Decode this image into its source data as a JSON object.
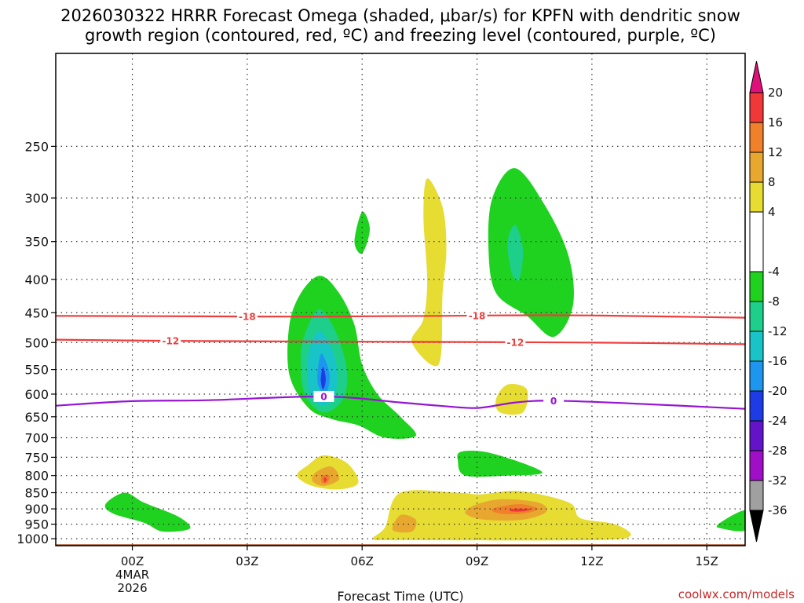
{
  "title_line1": "2026030322 HRRR Forecast Omega (shaded, μbar/s) for KPFN with dendritic snow",
  "title_line2": "growth region (contoured, red, ºC) and freezing level (contoured, purple, ºC)",
  "credit": "coolwx.com/models",
  "chart_data": {
    "type": "time-height contour",
    "title": "2026030322 HRRR Forecast Omega (shaded, μbar/s) for KPFN with dendritic snow growth region (contoured, red, ºC) and freezing level (contoured, purple, ºC)",
    "xlabel": "Forecast Time (UTC)",
    "ylabel": "",
    "x_range_hours_since_00Z": [
      -2,
      16
    ],
    "y_range_hPa": [
      1025,
      180
    ],
    "y_scale": "log-pressure",
    "x_ticks": [
      {
        "hour": 0,
        "label": "00Z",
        "sub1": "4MAR",
        "sub2": "2026"
      },
      {
        "hour": 3,
        "label": "03Z"
      },
      {
        "hour": 6,
        "label": "06Z"
      },
      {
        "hour": 9,
        "label": "09Z"
      },
      {
        "hour": 12,
        "label": "12Z"
      },
      {
        "hour": 15,
        "label": "15Z"
      }
    ],
    "y_ticks": [
      250,
      300,
      350,
      400,
      450,
      500,
      550,
      600,
      650,
      700,
      750,
      800,
      850,
      900,
      950,
      1000
    ],
    "colorbar": {
      "min": -36,
      "max": 24,
      "labels": [
        20,
        16,
        12,
        8,
        4,
        -4,
        -8,
        -12,
        -16,
        -20,
        -24,
        -28,
        -32,
        -36
      ],
      "bins": [
        {
          "lo": 20,
          "hi": 24,
          "color": "#e0107a"
        },
        {
          "lo": 16,
          "hi": 20,
          "color": "#f03838"
        },
        {
          "lo": 12,
          "hi": 16,
          "color": "#f0802a"
        },
        {
          "lo": 8,
          "hi": 12,
          "color": "#e8a830"
        },
        {
          "lo": 4,
          "hi": 8,
          "color": "#e6dc32"
        },
        {
          "lo": -4,
          "hi": 4,
          "color": "#ffffff"
        },
        {
          "lo": -8,
          "hi": -4,
          "color": "#1fd21f"
        },
        {
          "lo": -12,
          "hi": -8,
          "color": "#1ecf8c"
        },
        {
          "lo": -16,
          "hi": -12,
          "color": "#19c4c8"
        },
        {
          "lo": -20,
          "hi": -16,
          "color": "#1e96f0"
        },
        {
          "lo": -24,
          "hi": -20,
          "color": "#1e3ce6"
        },
        {
          "lo": -28,
          "hi": -24,
          "color": "#6414c8"
        },
        {
          "lo": -32,
          "hi": -28,
          "color": "#a00fc8"
        },
        {
          "lo": -36,
          "hi": -32,
          "color": "#a0a0a0"
        },
        {
          "lo": -40,
          "hi": -36,
          "color": "#000000"
        }
      ]
    },
    "omega_regions": [
      {
        "name": "upward-main",
        "points": [
          [
            4.9,
            395
          ],
          [
            5.4,
            420
          ],
          [
            5.8,
            470
          ],
          [
            6.0,
            540
          ],
          [
            6.4,
            600
          ],
          [
            7.0,
            650
          ],
          [
            7.4,
            695
          ],
          [
            6.6,
            700
          ],
          [
            5.9,
            670
          ],
          [
            5.2,
            655
          ],
          [
            4.6,
            630
          ],
          [
            4.1,
            560
          ],
          [
            4.1,
            470
          ],
          [
            4.4,
            420
          ]
        ],
        "value": -6
      },
      {
        "name": "upward-main-2",
        "points": [
          [
            4.9,
            445
          ],
          [
            5.3,
            480
          ],
          [
            5.6,
            550
          ],
          [
            5.5,
            610
          ],
          [
            5.0,
            640
          ],
          [
            4.5,
            600
          ],
          [
            4.4,
            520
          ],
          [
            4.6,
            470
          ]
        ],
        "value": -10
      },
      {
        "name": "upward-main-3",
        "points": [
          [
            4.9,
            480
          ],
          [
            5.3,
            530
          ],
          [
            5.3,
            600
          ],
          [
            4.95,
            625
          ],
          [
            4.6,
            590
          ],
          [
            4.6,
            520
          ]
        ],
        "value": -14
      },
      {
        "name": "upward-main-4",
        "points": [
          [
            4.95,
            520
          ],
          [
            5.15,
            560
          ],
          [
            5.05,
            600
          ],
          [
            4.85,
            580
          ],
          [
            4.85,
            545
          ]
        ],
        "value": -18
      },
      {
        "name": "upward-main-core",
        "points": [
          [
            4.98,
            545
          ],
          [
            5.05,
            570
          ],
          [
            4.98,
            590
          ],
          [
            4.92,
            570
          ]
        ],
        "value": -22
      },
      {
        "name": "upward-upper-right",
        "points": [
          [
            10.0,
            270
          ],
          [
            10.8,
            310
          ],
          [
            11.4,
            370
          ],
          [
            11.5,
            440
          ],
          [
            11.0,
            490
          ],
          [
            10.3,
            455
          ],
          [
            9.5,
            420
          ],
          [
            9.3,
            360
          ],
          [
            9.4,
            300
          ]
        ],
        "value": -6
      },
      {
        "name": "upward-upper-right-2",
        "points": [
          [
            10.0,
            330
          ],
          [
            10.2,
            360
          ],
          [
            10.1,
            400
          ],
          [
            9.9,
            390
          ],
          [
            9.8,
            350
          ]
        ],
        "value": -10
      },
      {
        "name": "upward-small-top",
        "points": [
          [
            6.0,
            315
          ],
          [
            6.2,
            335
          ],
          [
            6.0,
            365
          ],
          [
            5.8,
            350
          ]
        ],
        "value": -6
      },
      {
        "name": "upward-mid-right",
        "points": [
          [
            8.6,
            735
          ],
          [
            9.4,
            740
          ],
          [
            10.7,
            790
          ],
          [
            9.8,
            800
          ],
          [
            8.7,
            800
          ],
          [
            8.5,
            760
          ]
        ],
        "value": -6
      },
      {
        "name": "upward-low-left",
        "points": [
          [
            -0.7,
            885
          ],
          [
            -0.2,
            850
          ],
          [
            0.3,
            880
          ],
          [
            1.2,
            925
          ],
          [
            1.5,
            965
          ],
          [
            0.8,
            975
          ],
          [
            0.3,
            945
          ],
          [
            -0.5,
            915
          ]
        ],
        "value": -6
      },
      {
        "name": "upward-low-right",
        "points": [
          [
            15.3,
            950
          ],
          [
            16,
            905
          ],
          [
            16,
            970
          ],
          [
            15.4,
            965
          ]
        ],
        "value": -6
      },
      {
        "name": "downward-mid",
        "points": [
          [
            7.7,
            280
          ],
          [
            8.1,
            310
          ],
          [
            8.2,
            360
          ],
          [
            8.1,
            420
          ],
          [
            8.0,
            540
          ],
          [
            7.3,
            500
          ],
          [
            7.6,
            460
          ],
          [
            7.7,
            400
          ],
          [
            7.6,
            320
          ]
        ],
        "value": 6
      },
      {
        "name": "downward-small",
        "points": [
          [
            9.8,
            580
          ],
          [
            10.3,
            590
          ],
          [
            10.2,
            640
          ],
          [
            9.6,
            640
          ],
          [
            9.5,
            610
          ]
        ],
        "value": 6
      },
      {
        "name": "downward-low-left",
        "points": [
          [
            4.6,
            770
          ],
          [
            5.0,
            745
          ],
          [
            5.6,
            765
          ],
          [
            5.9,
            820
          ],
          [
            5.4,
            840
          ],
          [
            4.7,
            830
          ],
          [
            4.3,
            800
          ]
        ],
        "value": 6
      },
      {
        "name": "downward-low-left-2",
        "points": [
          [
            4.8,
            790
          ],
          [
            5.2,
            775
          ],
          [
            5.4,
            810
          ],
          [
            5.0,
            830
          ],
          [
            4.7,
            815
          ]
        ],
        "value": 10
      },
      {
        "name": "downward-low-left-3",
        "points": [
          [
            4.95,
            800
          ],
          [
            5.15,
            800
          ],
          [
            5.1,
            820
          ],
          [
            4.95,
            820
          ]
        ],
        "value": 14
      },
      {
        "name": "downward-low-left-core",
        "points": [
          [
            5.0,
            805
          ],
          [
            5.08,
            810
          ],
          [
            5.02,
            820
          ]
        ],
        "value": 18
      },
      {
        "name": "downward-low-right",
        "points": [
          [
            6.6,
            960
          ],
          [
            7.0,
            850
          ],
          [
            8.5,
            850
          ],
          [
            9.1,
            855
          ],
          [
            10.1,
            845
          ],
          [
            11.4,
            880
          ],
          [
            11.7,
            930
          ],
          [
            12.6,
            950
          ],
          [
            13.0,
            990
          ],
          [
            12.0,
            1005
          ],
          [
            7.0,
            1005
          ],
          [
            6.3,
            1000
          ]
        ],
        "value": 6
      },
      {
        "name": "downward-low-right-2",
        "points": [
          [
            8.9,
            890
          ],
          [
            9.6,
            870
          ],
          [
            10.6,
            880
          ],
          [
            10.8,
            910
          ],
          [
            10.2,
            935
          ],
          [
            9.2,
            935
          ],
          [
            8.7,
            915
          ]
        ],
        "value": 10
      },
      {
        "name": "downward-low-right-3",
        "points": [
          [
            9.4,
            900
          ],
          [
            10.1,
            885
          ],
          [
            10.6,
            900
          ],
          [
            10.2,
            915
          ],
          [
            9.6,
            915
          ]
        ],
        "value": 14
      },
      {
        "name": "downward-low-right-core",
        "points": [
          [
            9.9,
            900
          ],
          [
            10.4,
            900
          ],
          [
            10.2,
            908
          ],
          [
            9.9,
            908
          ]
        ],
        "value": 18
      },
      {
        "name": "downward-low-small",
        "points": [
          [
            7.0,
            920
          ],
          [
            7.4,
            935
          ],
          [
            7.3,
            975
          ],
          [
            6.8,
            970
          ]
        ],
        "value": 10
      }
    ],
    "temperature_contours": [
      {
        "name": "dendritic -18",
        "value": -18,
        "label": "-18",
        "color": "#f03c3c",
        "points": [
          [
            -2,
            455
          ],
          [
            3,
            456
          ],
          [
            5,
            456
          ],
          [
            8,
            455
          ],
          [
            11,
            454
          ],
          [
            14,
            456
          ],
          [
            16,
            458
          ]
        ],
        "label_at_hours": [
          3,
          9
        ]
      },
      {
        "name": "dendritic -12",
        "value": -12,
        "label": "-12",
        "color": "#f03c3c",
        "points": [
          [
            -2,
            495
          ],
          [
            1,
            497
          ],
          [
            4,
            498
          ],
          [
            8,
            499
          ],
          [
            12,
            500
          ],
          [
            16,
            503
          ]
        ],
        "label_at_hours": [
          1,
          10
        ]
      },
      {
        "name": "freezing level",
        "value": 0,
        "label": "0",
        "color": "#9614d2",
        "points": [
          [
            -2,
            625
          ],
          [
            0,
            615
          ],
          [
            2,
            613
          ],
          [
            5,
            605
          ],
          [
            7,
            618
          ],
          [
            8,
            625
          ],
          [
            9,
            630
          ],
          [
            10,
            618
          ],
          [
            11,
            614
          ],
          [
            13,
            620
          ],
          [
            16,
            632
          ]
        ],
        "label_at_hours": [
          5,
          11
        ]
      }
    ],
    "terrain_level_hPa": 1020
  }
}
